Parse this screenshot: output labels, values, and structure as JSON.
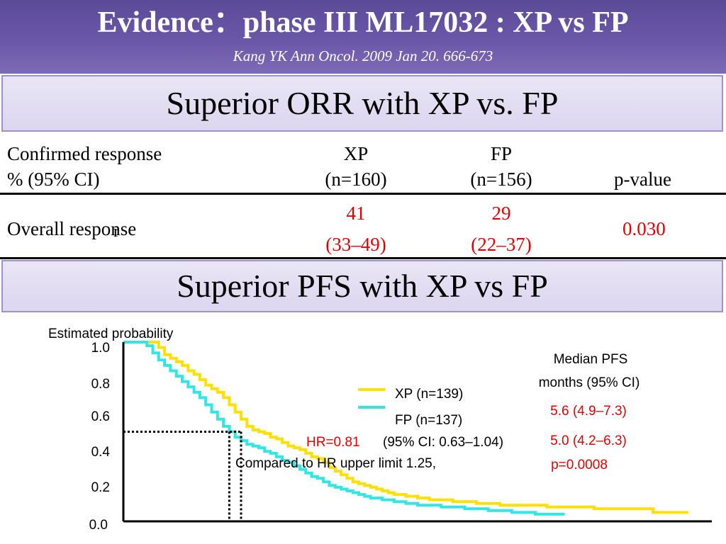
{
  "header": {
    "title": "Evidence：phase III ML17032 : XP vs FP",
    "citation": "Kang  YK  Ann Oncol. 2009 Jan 20. 666-673"
  },
  "banner_orr": "Superior ORR with XP vs. FP",
  "banner_pfs": "Superior PFS with XP vs FP",
  "table": {
    "col1_line1": "Confirmed response",
    "col1_line2": "% (95% CI)",
    "xp_label": "XP",
    "xp_n": "(n=160)",
    "fp_label": "FP",
    "fp_n": "(n=156)",
    "pvalue_label": "p-value",
    "row_label": "Overall response",
    "row_mark": "r",
    "xp_value": "41",
    "xp_ci": "(33–49)",
    "fp_value": "29",
    "fp_ci": "(22–37)",
    "p_value": "0.030"
  },
  "colors": {
    "xp": "#ffe000",
    "fp": "#33e6e6",
    "highlight": "#e60000"
  },
  "chart_data": {
    "type": "line",
    "ylabel": "Estimated probability",
    "ylim": [
      0,
      1
    ],
    "yticks": [
      "1.0",
      "0.8",
      "0.6",
      "0.4",
      "0.2",
      "0.0"
    ],
    "x_range": [
      0,
      100
    ],
    "legend": [
      {
        "name": "XP (n=139)",
        "color": "#ffe000"
      },
      {
        "name": "FP (n=137)",
        "color": "#33e6e6"
      }
    ],
    "series": [
      {
        "name": "XP (n=139)",
        "x": [
          0,
          5,
          6,
          7,
          8,
          9,
          10,
          11,
          12,
          13,
          14,
          15,
          16,
          17,
          18,
          19,
          20,
          21,
          22,
          23,
          24,
          25,
          26,
          27,
          28,
          29,
          30,
          31,
          32,
          33,
          34,
          35,
          36,
          37,
          38,
          39,
          40,
          41,
          42,
          43,
          44,
          45,
          46,
          48,
          50,
          52,
          54,
          56,
          58,
          60,
          62,
          64,
          68,
          72,
          76,
          80,
          84,
          90,
          96
        ],
        "y": [
          1.0,
          1.0,
          0.97,
          0.93,
          0.91,
          0.89,
          0.87,
          0.84,
          0.82,
          0.79,
          0.76,
          0.74,
          0.72,
          0.69,
          0.65,
          0.61,
          0.57,
          0.53,
          0.51,
          0.5,
          0.49,
          0.47,
          0.46,
          0.44,
          0.42,
          0.41,
          0.4,
          0.38,
          0.36,
          0.35,
          0.33,
          0.3,
          0.28,
          0.26,
          0.24,
          0.22,
          0.21,
          0.2,
          0.19,
          0.18,
          0.17,
          0.16,
          0.15,
          0.14,
          0.13,
          0.12,
          0.12,
          0.11,
          0.11,
          0.1,
          0.1,
          0.09,
          0.09,
          0.08,
          0.08,
          0.07,
          0.07,
          0.05,
          0.05
        ]
      },
      {
        "name": "FP (n=137)",
        "x": [
          0,
          4,
          5,
          6,
          7,
          8,
          9,
          10,
          11,
          12,
          13,
          14,
          15,
          16,
          17,
          18,
          19,
          20,
          21,
          22,
          23,
          24,
          25,
          26,
          27,
          28,
          29,
          30,
          31,
          32,
          33,
          34,
          35,
          36,
          37,
          38,
          39,
          40,
          41,
          42,
          44,
          46,
          48,
          50,
          52,
          54,
          56,
          58,
          60,
          62,
          64,
          66,
          68,
          70,
          72,
          75
        ],
        "y": [
          1.0,
          0.98,
          0.94,
          0.9,
          0.87,
          0.84,
          0.81,
          0.78,
          0.75,
          0.72,
          0.69,
          0.65,
          0.61,
          0.57,
          0.53,
          0.5,
          0.47,
          0.45,
          0.43,
          0.42,
          0.41,
          0.39,
          0.38,
          0.36,
          0.34,
          0.33,
          0.31,
          0.29,
          0.27,
          0.25,
          0.24,
          0.22,
          0.2,
          0.19,
          0.18,
          0.17,
          0.16,
          0.15,
          0.14,
          0.13,
          0.12,
          0.11,
          0.1,
          0.09,
          0.09,
          0.08,
          0.08,
          0.07,
          0.07,
          0.06,
          0.06,
          0.05,
          0.05,
          0.04,
          0.04,
          0.04
        ]
      }
    ],
    "median_lines": [
      {
        "x": 18,
        "y": 0.5
      },
      {
        "x": 20,
        "y": 0.5
      }
    ],
    "annotations": {
      "median_title_1": "Median PFS",
      "median_title_2": "months (95% CI)",
      "median_xp": "5.6 (4.9–7.3)",
      "median_fp": "5.0 (4.2–6.3)",
      "p": "p=0.0008",
      "hr": "HR=0.81",
      "hr_ci": "(95% CI: 0.63–1.04)",
      "compared": "Compared to HR upper limit 1.25,"
    }
  }
}
